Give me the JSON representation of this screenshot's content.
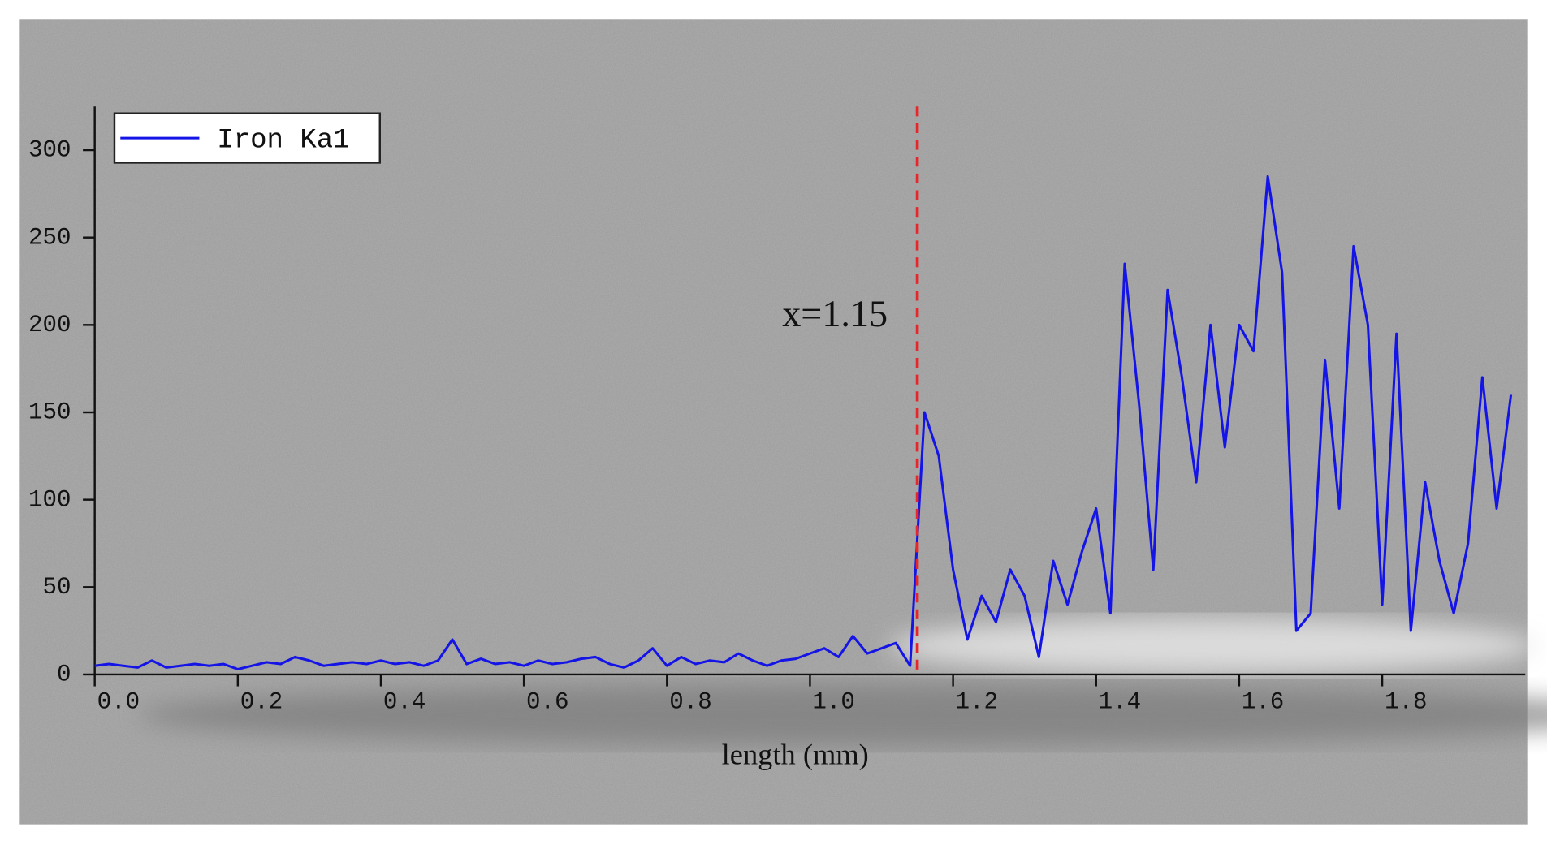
{
  "chart_data": {
    "type": "line",
    "xlabel": "length (mm)",
    "x": [
      0,
      0.02,
      0.04,
      0.06,
      0.08,
      0.1,
      0.12,
      0.14,
      0.16,
      0.18,
      0.2,
      0.22,
      0.24,
      0.26,
      0.28,
      0.3,
      0.32,
      0.34,
      0.36,
      0.38,
      0.4,
      0.42,
      0.44,
      0.46,
      0.48,
      0.5,
      0.52,
      0.54,
      0.56,
      0.58,
      0.6,
      0.62,
      0.64,
      0.66,
      0.68,
      0.7,
      0.72,
      0.74,
      0.76,
      0.78,
      0.8,
      0.82,
      0.84,
      0.86,
      0.88,
      0.9,
      0.92,
      0.94,
      0.96,
      0.98,
      1.0,
      1.02,
      1.04,
      1.06,
      1.08,
      1.1,
      1.12,
      1.14,
      1.16,
      1.18,
      1.2,
      1.22,
      1.24,
      1.26,
      1.28,
      1.3,
      1.32,
      1.34,
      1.36,
      1.38,
      1.4,
      1.42,
      1.44,
      1.46,
      1.48,
      1.5,
      1.52,
      1.54,
      1.56,
      1.58,
      1.6,
      1.62,
      1.64,
      1.66,
      1.68,
      1.7,
      1.72,
      1.74,
      1.76,
      1.78,
      1.8,
      1.82,
      1.84,
      1.86,
      1.88,
      1.9,
      1.92,
      1.94,
      1.96,
      1.98
    ],
    "series": [
      {
        "name": "Iron Ka1",
        "color": "#1414e6",
        "values": [
          5,
          6,
          5,
          4,
          8,
          4,
          5,
          6,
          5,
          6,
          3,
          5,
          7,
          6,
          10,
          8,
          5,
          6,
          7,
          6,
          8,
          6,
          7,
          5,
          8,
          20,
          6,
          9,
          6,
          7,
          5,
          8,
          6,
          7,
          9,
          10,
          6,
          4,
          8,
          15,
          5,
          10,
          6,
          8,
          7,
          12,
          8,
          5,
          8,
          9,
          12,
          15,
          10,
          22,
          12,
          15,
          18,
          5,
          150,
          125,
          60,
          20,
          45,
          30,
          60,
          45,
          10,
          65,
          40,
          70,
          95,
          35,
          235,
          155,
          60,
          220,
          170,
          110,
          200,
          130,
          200,
          185,
          285,
          230,
          25,
          35,
          180,
          95,
          245,
          200,
          40,
          195,
          25,
          110,
          65,
          35,
          75,
          170,
          95,
          160
        ]
      }
    ],
    "xlim": [
      0,
      2.0
    ],
    "ylim": [
      0,
      325
    ],
    "xticks": [
      {
        "value": 0,
        "label": "0.0"
      },
      0.2,
      0.4,
      0.6,
      0.8,
      {
        "value": 1,
        "label": "1.0"
      },
      1.2,
      1.4,
      1.6,
      1.8
    ],
    "yticks": [
      0,
      50,
      100,
      150,
      200,
      250,
      300
    ],
    "legend": "upper left",
    "annotations": [
      {
        "text": "x=1.15",
        "x": 1.15,
        "color": "#e8262a"
      }
    ]
  }
}
